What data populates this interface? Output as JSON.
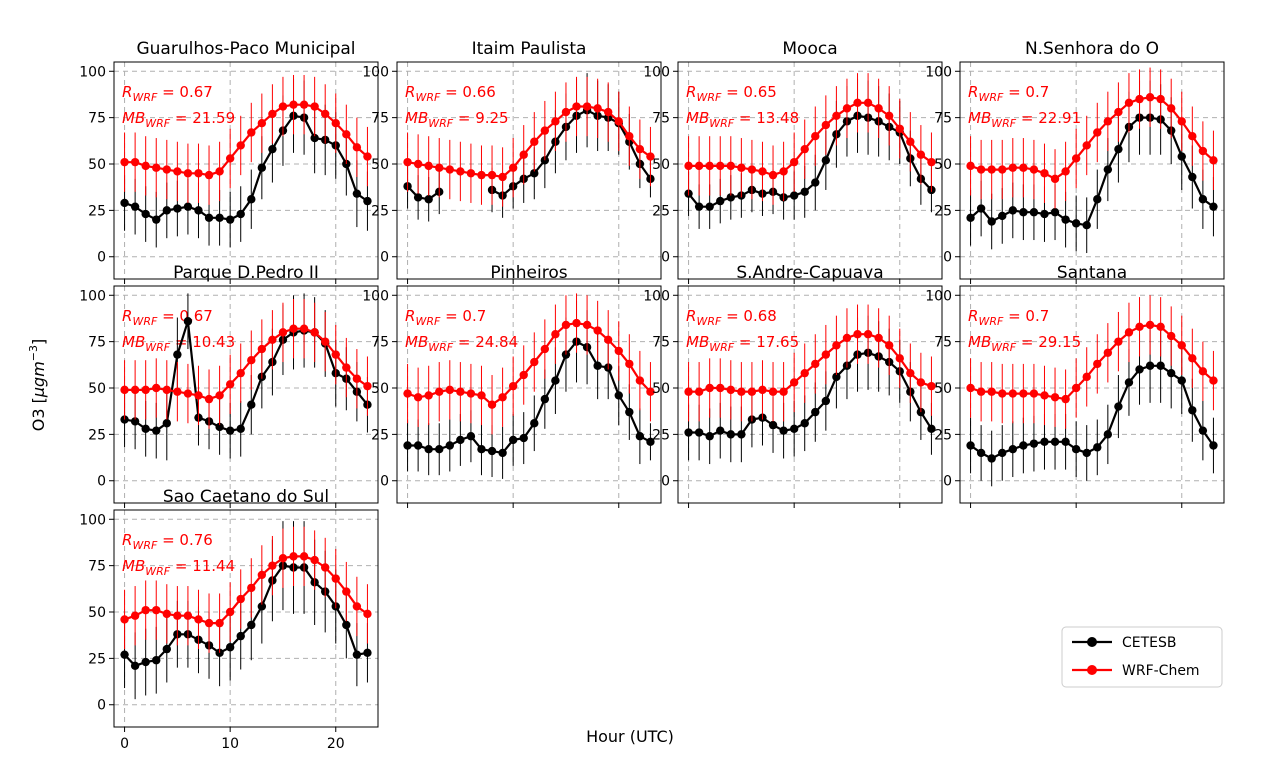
{
  "figure": {
    "ylabel_prefix": "O3 [",
    "ylabel_unit_mu": "μ",
    "ylabel_unit_rest": "gm",
    "ylabel_exp": "−3",
    "ylabel_suffix": "]",
    "xlabel": "Hour (UTC)"
  },
  "colors": {
    "obs": "#000000",
    "model": "#ff0000",
    "grid": "#b0b0b0"
  },
  "legend": {
    "obs_label": "CETESB",
    "model_label": "WRF-Chem",
    "placement": "lower-right"
  },
  "ann_labels": {
    "r_main": "R",
    "mb_main": "MB",
    "sub": "WRF",
    "eq": " = "
  },
  "chart_data": {
    "type": "line",
    "xlim": [
      -1,
      24
    ],
    "ylim": [
      -12,
      105
    ],
    "xticks": [
      0,
      10,
      20
    ],
    "yticks": [
      0,
      25,
      50,
      75,
      100
    ],
    "panels": [
      {
        "title": "Guarulhos-Paco Municipal",
        "r": "0.67",
        "mb": "21.59",
        "obs": [
          29,
          27,
          23,
          20,
          25,
          26,
          27,
          25,
          21,
          21,
          20,
          23,
          31,
          48,
          58,
          68,
          76,
          75,
          64,
          63,
          60,
          50,
          34,
          30
        ],
        "obs_err": [
          15,
          15,
          15,
          15,
          15,
          15,
          15,
          15,
          15,
          15,
          15,
          15,
          16,
          17,
          18,
          19,
          20,
          20,
          19,
          19,
          18,
          17,
          18,
          16
        ],
        "model": [
          51,
          51,
          49,
          48,
          47,
          46,
          45,
          45,
          44,
          46,
          53,
          60,
          67,
          72,
          77,
          81,
          82,
          82,
          81,
          77,
          72,
          66,
          59,
          54
        ],
        "model_err": [
          16,
          16,
          16,
          16,
          16,
          16,
          16,
          16,
          16,
          16,
          16,
          16,
          16,
          16,
          16,
          16,
          16,
          16,
          16,
          16,
          16,
          16,
          16,
          16
        ]
      },
      {
        "title": "Itaim Paulista",
        "r": "0.66",
        "mb": "9.25",
        "obs": [
          38,
          32,
          31,
          35,
          null,
          null,
          null,
          null,
          36,
          33,
          38,
          42,
          45,
          52,
          62,
          70,
          76,
          79,
          76,
          75,
          72,
          62,
          50,
          42
        ],
        "obs_err": [
          12,
          12,
          12,
          12,
          null,
          null,
          null,
          null,
          12,
          12,
          12,
          13,
          14,
          15,
          17,
          18,
          20,
          20,
          19,
          18,
          17,
          15,
          13,
          10
        ],
        "model": [
          51,
          50,
          49,
          48,
          47,
          46,
          45,
          44,
          44,
          43,
          48,
          55,
          62,
          68,
          73,
          78,
          81,
          81,
          80,
          78,
          73,
          65,
          58,
          54
        ],
        "model_err": [
          16,
          16,
          16,
          16,
          16,
          16,
          16,
          16,
          16,
          16,
          16,
          16,
          16,
          16,
          16,
          16,
          16,
          16,
          16,
          16,
          16,
          16,
          16,
          16
        ]
      },
      {
        "title": "Mooca",
        "r": "0.65",
        "mb": "13.48",
        "obs": [
          34,
          27,
          27,
          30,
          32,
          33,
          36,
          34,
          35,
          32,
          33,
          35,
          40,
          52,
          66,
          73,
          76,
          75,
          73,
          70,
          67,
          53,
          42,
          36
        ],
        "obs_err": [
          12,
          12,
          12,
          12,
          12,
          12,
          12,
          12,
          12,
          12,
          13,
          14,
          15,
          16,
          18,
          19,
          20,
          20,
          19,
          18,
          17,
          15,
          14,
          12
        ],
        "model": [
          49,
          49,
          49,
          49,
          49,
          48,
          47,
          46,
          44,
          46,
          51,
          58,
          65,
          71,
          76,
          80,
          83,
          83,
          80,
          76,
          69,
          62,
          55,
          51
        ],
        "model_err": [
          16,
          16,
          16,
          16,
          16,
          16,
          16,
          16,
          16,
          16,
          16,
          16,
          16,
          16,
          16,
          16,
          16,
          16,
          16,
          16,
          16,
          16,
          16,
          16
        ]
      },
      {
        "title": "N.Senhora do O",
        "r": "0.7",
        "mb": "22.91",
        "obs": [
          21,
          26,
          19,
          22,
          25,
          24,
          24,
          23,
          24,
          20,
          18,
          17,
          31,
          47,
          58,
          70,
          75,
          75,
          74,
          68,
          54,
          43,
          31,
          27
        ],
        "obs_err": [
          15,
          15,
          15,
          15,
          15,
          15,
          15,
          15,
          15,
          15,
          15,
          15,
          16,
          17,
          18,
          19,
          20,
          20,
          19,
          18,
          18,
          17,
          16,
          16
        ],
        "model": [
          49,
          47,
          47,
          47,
          48,
          48,
          47,
          45,
          42,
          46,
          53,
          60,
          67,
          73,
          78,
          83,
          85,
          86,
          85,
          80,
          73,
          65,
          57,
          52
        ],
        "model_err": [
          16,
          16,
          16,
          16,
          16,
          16,
          16,
          16,
          16,
          16,
          16,
          16,
          16,
          16,
          16,
          16,
          16,
          16,
          16,
          16,
          16,
          16,
          16,
          16
        ]
      },
      {
        "title": "Parque D.Pedro II",
        "r": "0.67",
        "mb": "10.43",
        "obs": [
          33,
          32,
          28,
          27,
          31,
          68,
          86,
          34,
          32,
          29,
          27,
          28,
          41,
          56,
          64,
          76,
          80,
          81,
          80,
          74,
          58,
          55,
          48,
          41
        ],
        "obs_err": [
          15,
          15,
          15,
          15,
          20,
          20,
          15,
          15,
          15,
          15,
          15,
          15,
          16,
          17,
          18,
          19,
          20,
          20,
          19,
          18,
          18,
          17,
          16,
          15
        ],
        "model": [
          49,
          49,
          49,
          50,
          49,
          48,
          47,
          46,
          44,
          46,
          52,
          58,
          65,
          71,
          76,
          80,
          82,
          82,
          80,
          75,
          68,
          61,
          55,
          51
        ],
        "model_err": [
          16,
          16,
          16,
          16,
          16,
          16,
          16,
          16,
          16,
          16,
          16,
          16,
          16,
          16,
          16,
          16,
          16,
          16,
          16,
          16,
          16,
          16,
          16,
          16
        ]
      },
      {
        "title": "Pinheiros",
        "r": "0.7",
        "mb": "24.84",
        "obs": [
          19,
          19,
          17,
          17,
          19,
          22,
          24,
          17,
          16,
          15,
          22,
          23,
          31,
          44,
          54,
          68,
          75,
          72,
          62,
          61,
          46,
          37,
          24,
          21
        ],
        "obs_err": [
          14,
          14,
          14,
          14,
          14,
          14,
          14,
          14,
          14,
          14,
          14,
          14,
          15,
          16,
          18,
          20,
          22,
          20,
          18,
          17,
          16,
          15,
          15,
          10
        ],
        "model": [
          47,
          45,
          46,
          48,
          49,
          48,
          47,
          46,
          41,
          45,
          51,
          57,
          64,
          71,
          79,
          84,
          85,
          84,
          81,
          76,
          70,
          63,
          54,
          48
        ],
        "model_err": [
          16,
          16,
          16,
          16,
          16,
          16,
          16,
          16,
          16,
          16,
          16,
          16,
          16,
          16,
          16,
          16,
          16,
          16,
          16,
          16,
          16,
          16,
          16,
          16
        ]
      },
      {
        "title": "S.Andre-Capuava",
        "r": "0.68",
        "mb": "17.65",
        "obs": [
          26,
          26,
          24,
          27,
          25,
          25,
          33,
          34,
          30,
          27,
          28,
          31,
          37,
          43,
          56,
          62,
          68,
          69,
          67,
          64,
          59,
          48,
          37,
          28
        ],
        "obs_err": [
          15,
          15,
          15,
          15,
          15,
          15,
          15,
          15,
          15,
          15,
          15,
          15,
          16,
          16,
          17,
          18,
          20,
          20,
          19,
          18,
          17,
          16,
          15,
          14
        ],
        "model": [
          48,
          48,
          50,
          50,
          49,
          48,
          48,
          49,
          48,
          48,
          53,
          58,
          63,
          68,
          73,
          77,
          79,
          79,
          77,
          73,
          66,
          58,
          53,
          51
        ],
        "model_err": [
          16,
          16,
          16,
          16,
          16,
          16,
          16,
          16,
          16,
          16,
          16,
          16,
          16,
          16,
          16,
          16,
          16,
          16,
          16,
          16,
          16,
          16,
          16,
          16
        ]
      },
      {
        "title": "Santana",
        "r": "0.7",
        "mb": "29.15",
        "obs": [
          19,
          15,
          12,
          15,
          17,
          19,
          20,
          21,
          21,
          21,
          17,
          15,
          18,
          25,
          40,
          53,
          60,
          62,
          62,
          58,
          54,
          38,
          27,
          19
        ],
        "obs_err": [
          15,
          15,
          15,
          15,
          15,
          15,
          15,
          15,
          15,
          15,
          15,
          15,
          15,
          16,
          17,
          18,
          19,
          20,
          20,
          19,
          18,
          17,
          16,
          15
        ],
        "model": [
          50,
          48,
          48,
          47,
          47,
          47,
          47,
          46,
          45,
          44,
          50,
          56,
          63,
          69,
          75,
          80,
          83,
          84,
          83,
          78,
          73,
          66,
          59,
          54
        ],
        "model_err": [
          16,
          16,
          16,
          16,
          16,
          16,
          16,
          16,
          16,
          16,
          16,
          16,
          16,
          16,
          16,
          16,
          16,
          16,
          16,
          16,
          16,
          16,
          16,
          16
        ]
      },
      {
        "title": "Sao Caetano do Sul",
        "r": "0.76",
        "mb": "11.44",
        "obs": [
          27,
          21,
          23,
          24,
          30,
          38,
          38,
          35,
          32,
          28,
          31,
          37,
          43,
          53,
          67,
          75,
          74,
          74,
          66,
          61,
          53,
          43,
          27,
          28
        ],
        "obs_err": [
          18,
          18,
          18,
          18,
          18,
          18,
          18,
          18,
          18,
          18,
          18,
          18,
          19,
          20,
          22,
          24,
          25,
          25,
          23,
          22,
          20,
          18,
          17,
          16
        ],
        "model": [
          46,
          48,
          51,
          51,
          49,
          48,
          48,
          46,
          44,
          44,
          50,
          57,
          63,
          70,
          75,
          79,
          80,
          80,
          78,
          74,
          68,
          61,
          53,
          49
        ],
        "model_err": [
          16,
          16,
          16,
          16,
          16,
          16,
          16,
          16,
          16,
          16,
          16,
          16,
          16,
          16,
          16,
          16,
          16,
          16,
          16,
          16,
          16,
          16,
          16,
          16
        ]
      }
    ]
  }
}
